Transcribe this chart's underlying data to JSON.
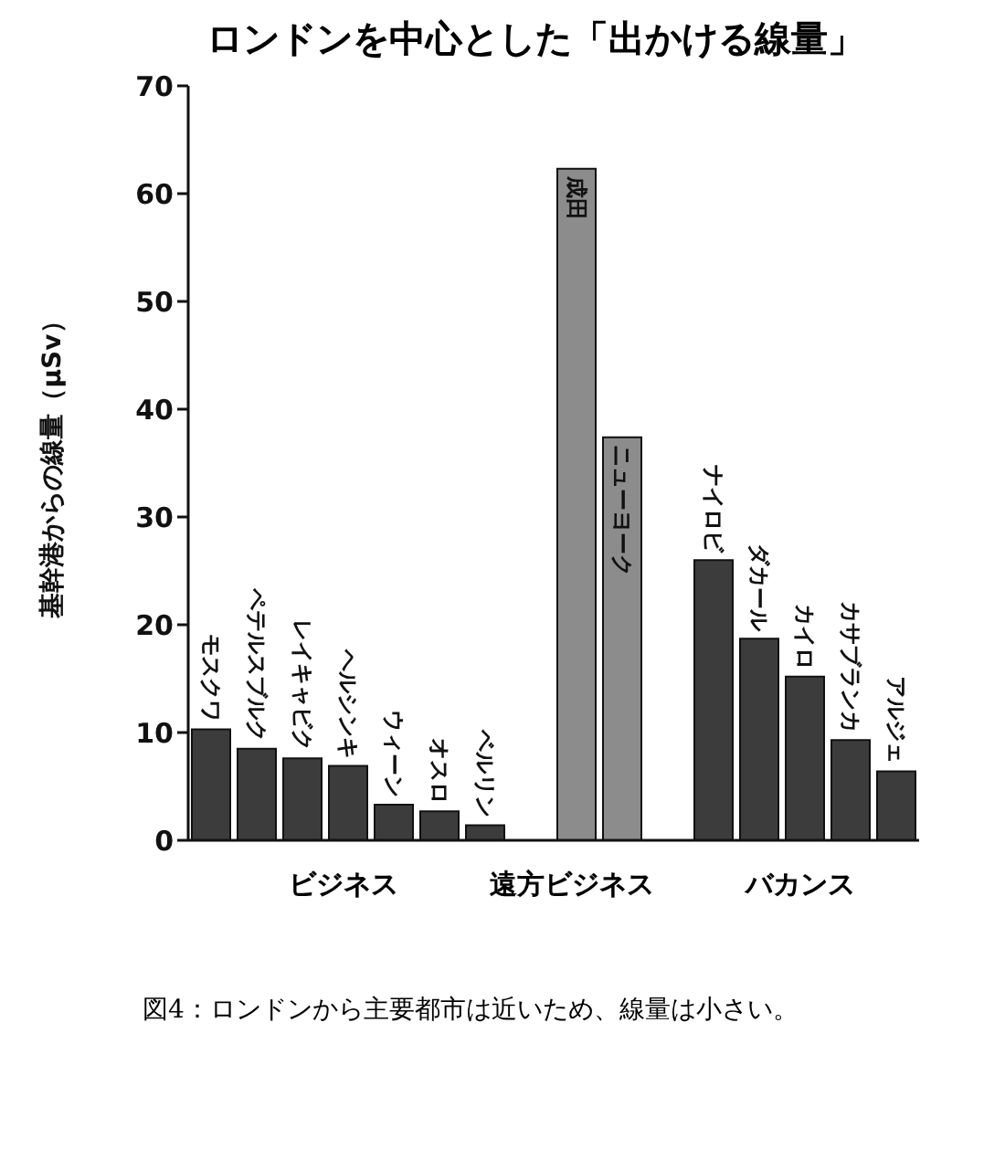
{
  "chart_data": {
    "type": "bar",
    "title": "ロンドンを中心とした「出かける線量」",
    "ylabel": "基幹港からの線量（μSv）",
    "categories": [
      "モスクワ",
      "ペテルスブルク",
      "レイキャビク",
      "ヘルシンキ",
      "ウィーン",
      "オスロ",
      "ベルリン",
      null,
      "成田",
      "ニューヨーク",
      null,
      "ナイロビ",
      "ダカール",
      "カイロ",
      "カサブランカ",
      "アルジェ"
    ],
    "values": [
      10.3,
      8.5,
      7.6,
      6.9,
      3.3,
      2.7,
      1.4,
      null,
      62.3,
      37.4,
      null,
      26.0,
      18.7,
      15.2,
      9.3,
      6.4
    ],
    "colors": [
      "#3c3c3c",
      "#3c3c3c",
      "#3c3c3c",
      "#3c3c3c",
      "#3c3c3c",
      "#3c3c3c",
      "#3c3c3c",
      "#3c3c3c",
      "#8c8c8c",
      "#8c8c8c",
      "#3c3c3c",
      "#3c3c3c",
      "#3c3c3c",
      "#3c3c3c",
      "#3c3c3c",
      "#3c3c3c"
    ],
    "ylim": [
      0,
      70
    ],
    "yticks": [
      0,
      10,
      20,
      30,
      40,
      50,
      60,
      70
    ],
    "grid": false,
    "legend": false,
    "annotations": [
      "ビジネス",
      "遠方ビジネス",
      "バカンス",
      "図4：ロンドンから主要都市は近いため、線量は小さい。"
    ]
  }
}
